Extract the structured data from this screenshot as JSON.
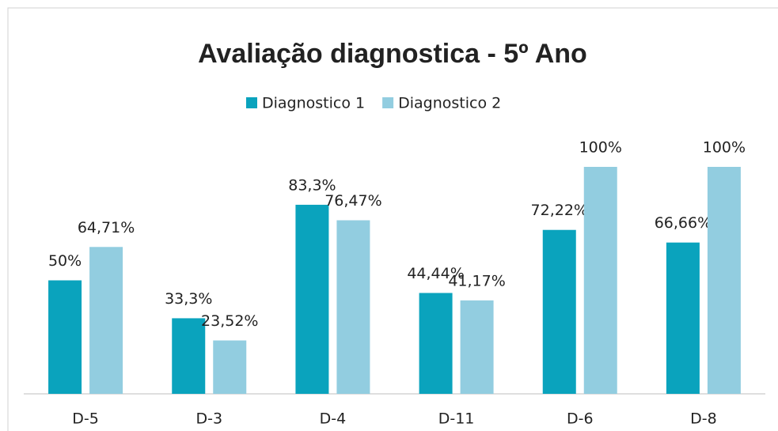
{
  "chart_data": {
    "type": "bar",
    "title": "Avaliação diagnostica - 5º Ano",
    "categories": [
      "D-5",
      "D-3",
      "D-4",
      "D-11",
      "D-6",
      "D-8"
    ],
    "series": [
      {
        "name": "Diagnostico 1",
        "color": "#0aa3bd",
        "values": [
          50,
          33.3,
          83.3,
          44.44,
          72.22,
          66.66
        ],
        "value_labels": [
          "50%",
          "33,3%",
          "83,3%",
          "44,44%",
          "72,22%",
          "66,66%"
        ]
      },
      {
        "name": "Diagnostico 2",
        "color": "#92cde0",
        "values": [
          64.71,
          23.52,
          76.47,
          41.17,
          100,
          100
        ],
        "value_labels": [
          "64,71%",
          "23,52%",
          "76,47%",
          "41,17%",
          "100%",
          "100%"
        ]
      }
    ]
  }
}
